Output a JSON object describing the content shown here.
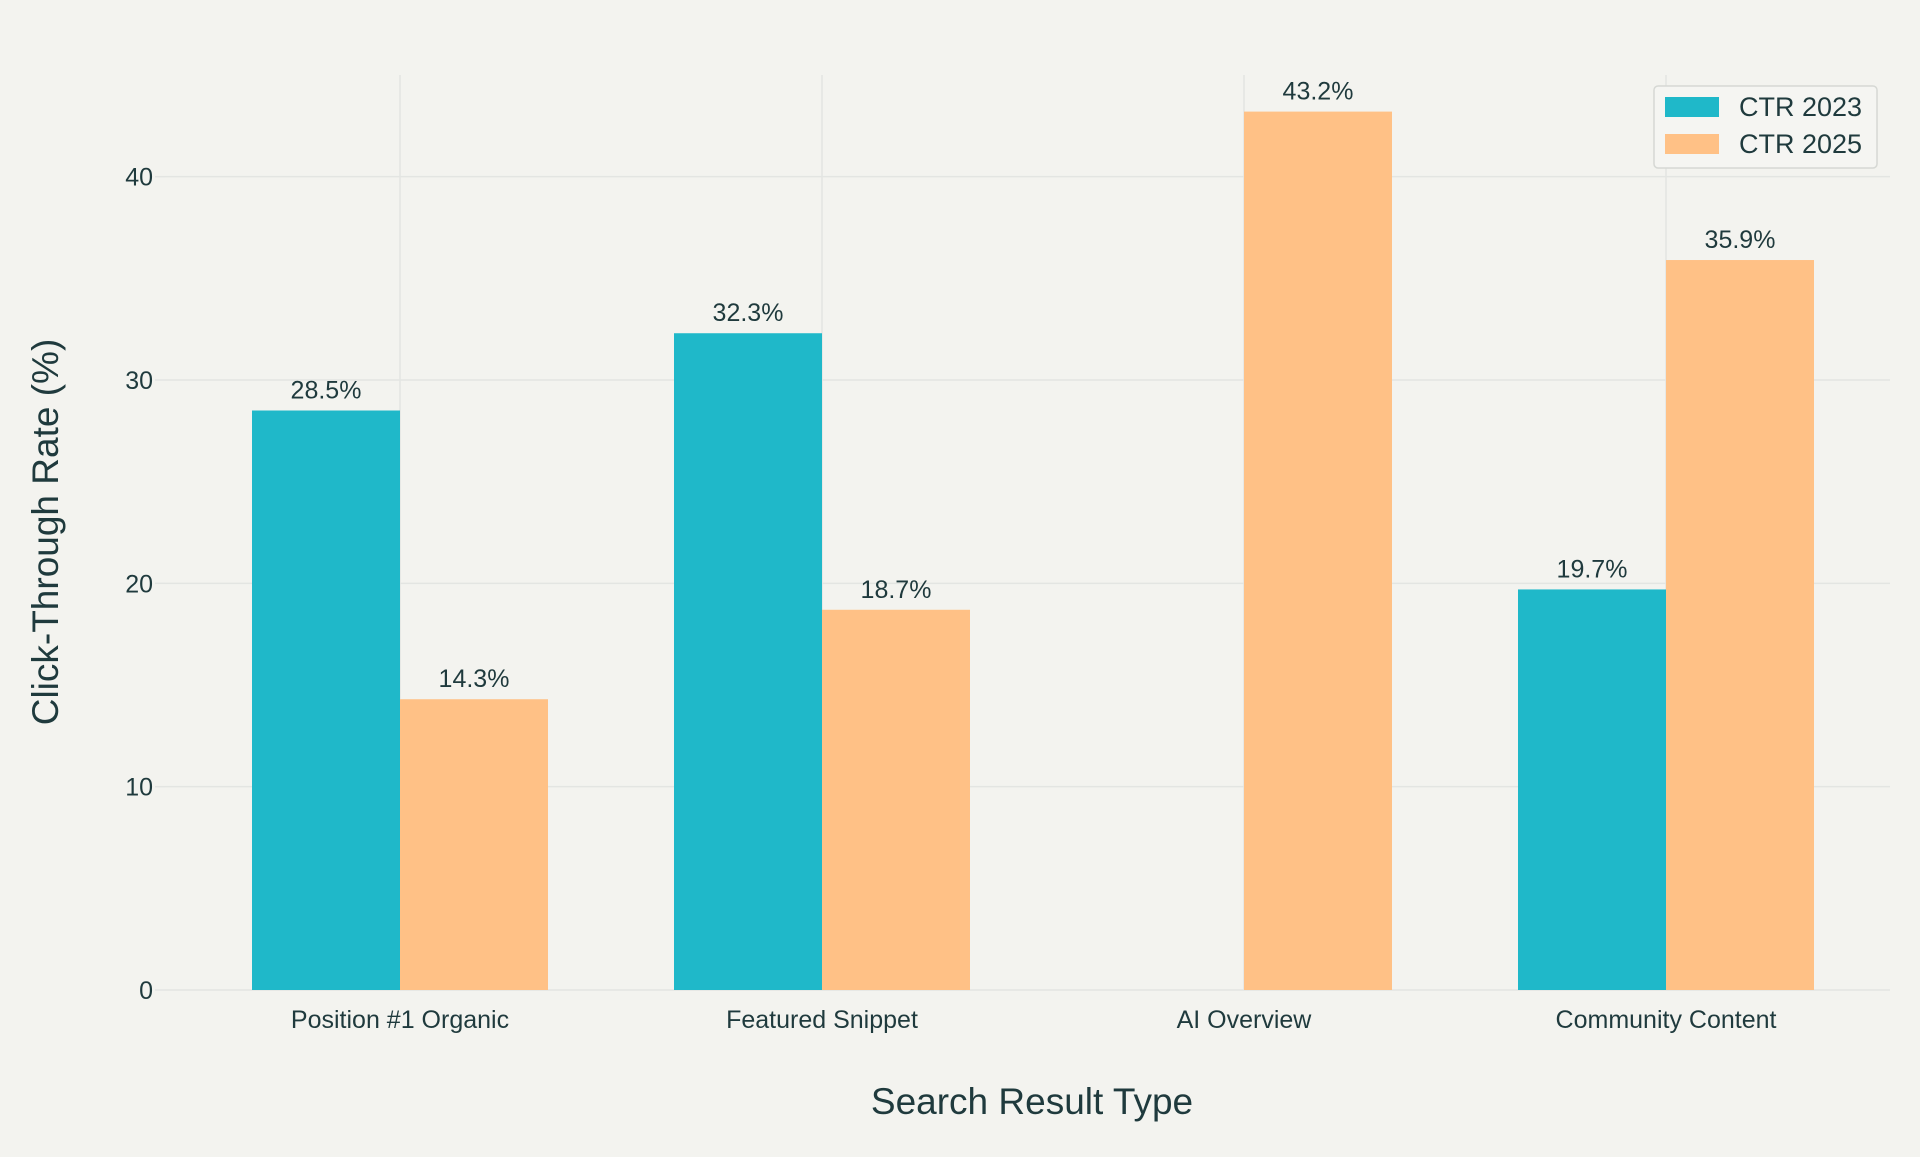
{
  "chart_data": {
    "type": "bar",
    "title": "",
    "xlabel": "Search Result Type",
    "ylabel": "Click-Through Rate (%)",
    "categories": [
      "Position #1 Organic",
      "Featured Snippet",
      "AI Overview",
      "Community Content"
    ],
    "series": [
      {
        "name": "CTR 2023",
        "color": "#1fb8c9",
        "values": [
          28.5,
          32.3,
          null,
          19.7
        ],
        "labels": [
          "28.5%",
          "32.3%",
          "",
          "19.7%"
        ]
      },
      {
        "name": "CTR 2025",
        "color": "#ffc186",
        "values": [
          14.3,
          18.7,
          43.2,
          35.9
        ],
        "labels": [
          "14.3%",
          "18.7%",
          "43.2%",
          "35.9%"
        ]
      }
    ],
    "ylim": [
      0,
      45
    ],
    "yticks": [
      0,
      10,
      20,
      30,
      40
    ],
    "ytick_labels": [
      "0",
      "10",
      "20",
      "30",
      "40"
    ],
    "grid": true,
    "legend_position": "top-right",
    "colors": {
      "background": "#f3f3ef",
      "grid": "#e3e5e2",
      "text": "#1f3a3d"
    }
  }
}
